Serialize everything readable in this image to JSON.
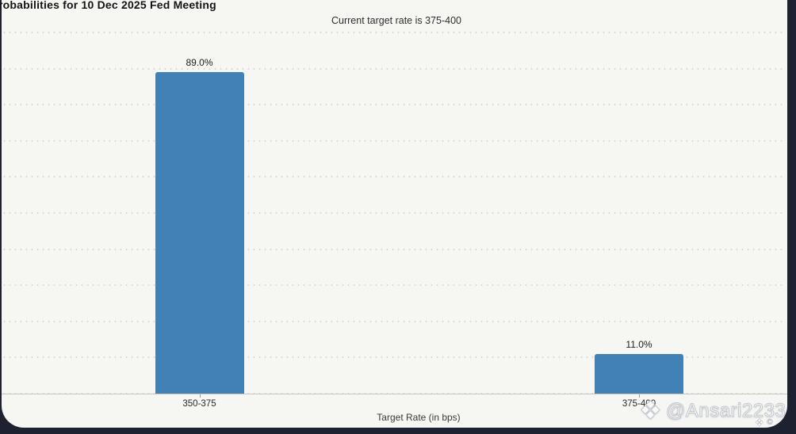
{
  "chart_data": {
    "type": "bar",
    "title": "robabilities for 10 Dec 2025 Fed Meeting",
    "subtitle": "Current target rate is 375-400",
    "xlabel": "Target Rate (in bps)",
    "ylabel": "",
    "categories": [
      "350-375",
      "375-400"
    ],
    "values": [
      89.0,
      11.0
    ],
    "value_labels": [
      "89.0%",
      "11.0%"
    ],
    "ylim": [
      0,
      100
    ],
    "grid_step": 10,
    "grid_style": "dotted-horizontal",
    "legend": "none",
    "bar_color": "#4281b5"
  },
  "watermark": {
    "logo_icon": "diamond-ornament",
    "logo_glyph": "❖",
    "handle": "@Ansari2233",
    "sub_diamond_glyph": "❖",
    "copyright_symbol": "©"
  }
}
